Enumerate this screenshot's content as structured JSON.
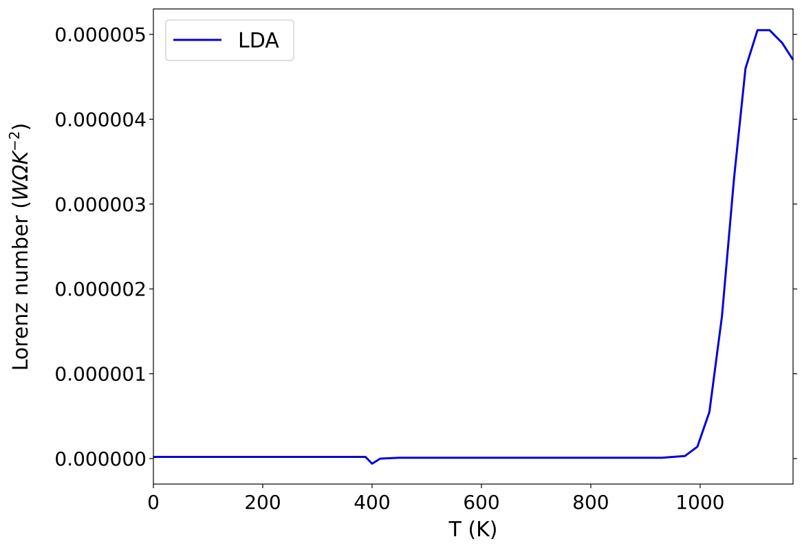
{
  "chart_data": {
    "type": "line",
    "title": "",
    "xlabel": "T (K)",
    "ylabel_main": "Lorenz number (",
    "ylabel_units": "WΩK",
    "ylabel_exp": "−2",
    "ylabel_close": ")",
    "xlim": [
      0,
      1170
    ],
    "ylim": [
      -3e-07,
      5.3e-06
    ],
    "x_ticks": [
      0,
      200,
      400,
      600,
      800,
      1000
    ],
    "x_tick_labels": [
      "0",
      "200",
      "400",
      "600",
      "800",
      "1000"
    ],
    "y_ticks": [
      0,
      1e-06,
      2e-06,
      3e-06,
      4e-06,
      5e-06
    ],
    "y_tick_labels": [
      "0.000000",
      "0.000001",
      "0.000002",
      "0.000003",
      "0.000004",
      "0.000005"
    ],
    "grid": false,
    "legend_position": "top-left",
    "series": [
      {
        "name": "LDA",
        "color": "#0000dd",
        "x": [
          0,
          100,
          200,
          300,
          388,
          400,
          415,
          450,
          500,
          600,
          700,
          800,
          900,
          930,
          950,
          972,
          995,
          1017,
          1040,
          1062,
          1083,
          1105,
          1127,
          1150,
          1170
        ],
        "y": [
          2e-08,
          2e-08,
          2e-08,
          2e-08,
          2e-08,
          -6e-08,
          0.0,
          1e-08,
          1e-08,
          1e-08,
          1e-08,
          1e-08,
          1e-08,
          1e-08,
          2e-08,
          3e-08,
          1.4e-07,
          5.5e-07,
          1.68e-06,
          3.3e-06,
          4.6e-06,
          5.05e-06,
          5.05e-06,
          4.9e-06,
          4.7e-06
        ]
      }
    ]
  }
}
